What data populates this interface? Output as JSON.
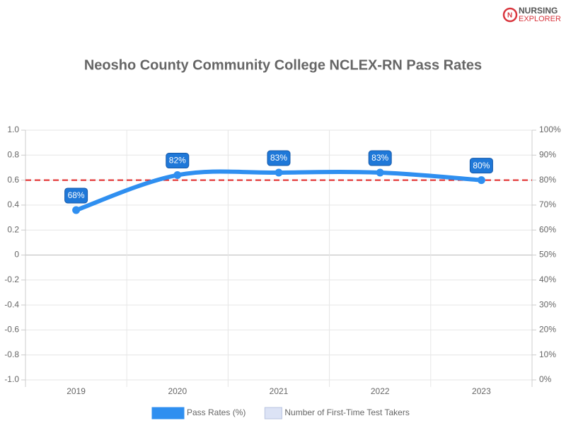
{
  "brand": {
    "line1": "NURSING",
    "line2": "EXPLORER"
  },
  "chart_data": {
    "type": "line",
    "title": "Neosho County Community College NCLEX-RN Pass Rates",
    "categories": [
      "2019",
      "2020",
      "2021",
      "2022",
      "2023"
    ],
    "series": [
      {
        "name": "Pass Rates (%)",
        "color": "#2f8ff0",
        "axis": "y2",
        "values": [
          68,
          82,
          83,
          83,
          80
        ],
        "value_labels": [
          "68%",
          "82%",
          "83%",
          "83%",
          "80%"
        ]
      },
      {
        "name": "Number of First-Time Test Takers",
        "color": "#dce3f5",
        "axis": "y",
        "values": [
          null,
          null,
          null,
          null,
          null
        ]
      }
    ],
    "ylim": [
      -1,
      1
    ],
    "yticks": [
      {
        "value": -1,
        "label": "-1.0"
      },
      -0.8,
      -0.6,
      -0.4,
      -0.2,
      0,
      0.2,
      0.4,
      0.6,
      0.8,
      {
        "value": 1,
        "label": "1.0"
      }
    ],
    "y2lim": [
      0,
      100
    ],
    "y2ticks": [
      {
        "value": 0,
        "label": "0%"
      },
      {
        "value": 10,
        "label": "10%"
      },
      {
        "value": 20,
        "label": "20%"
      },
      {
        "value": 30,
        "label": "30%"
      },
      {
        "value": 40,
        "label": "40%"
      },
      {
        "value": 50,
        "label": "50%"
      },
      {
        "value": 60,
        "label": "60%"
      },
      {
        "value": 70,
        "label": "70%"
      },
      {
        "value": 80,
        "label": "80%"
      },
      {
        "value": 90,
        "label": "90%"
      },
      {
        "value": 100,
        "label": "100%"
      }
    ],
    "reference_line": {
      "value": 80,
      "axis": "y2",
      "color": "#e02424"
    },
    "grid": true
  }
}
